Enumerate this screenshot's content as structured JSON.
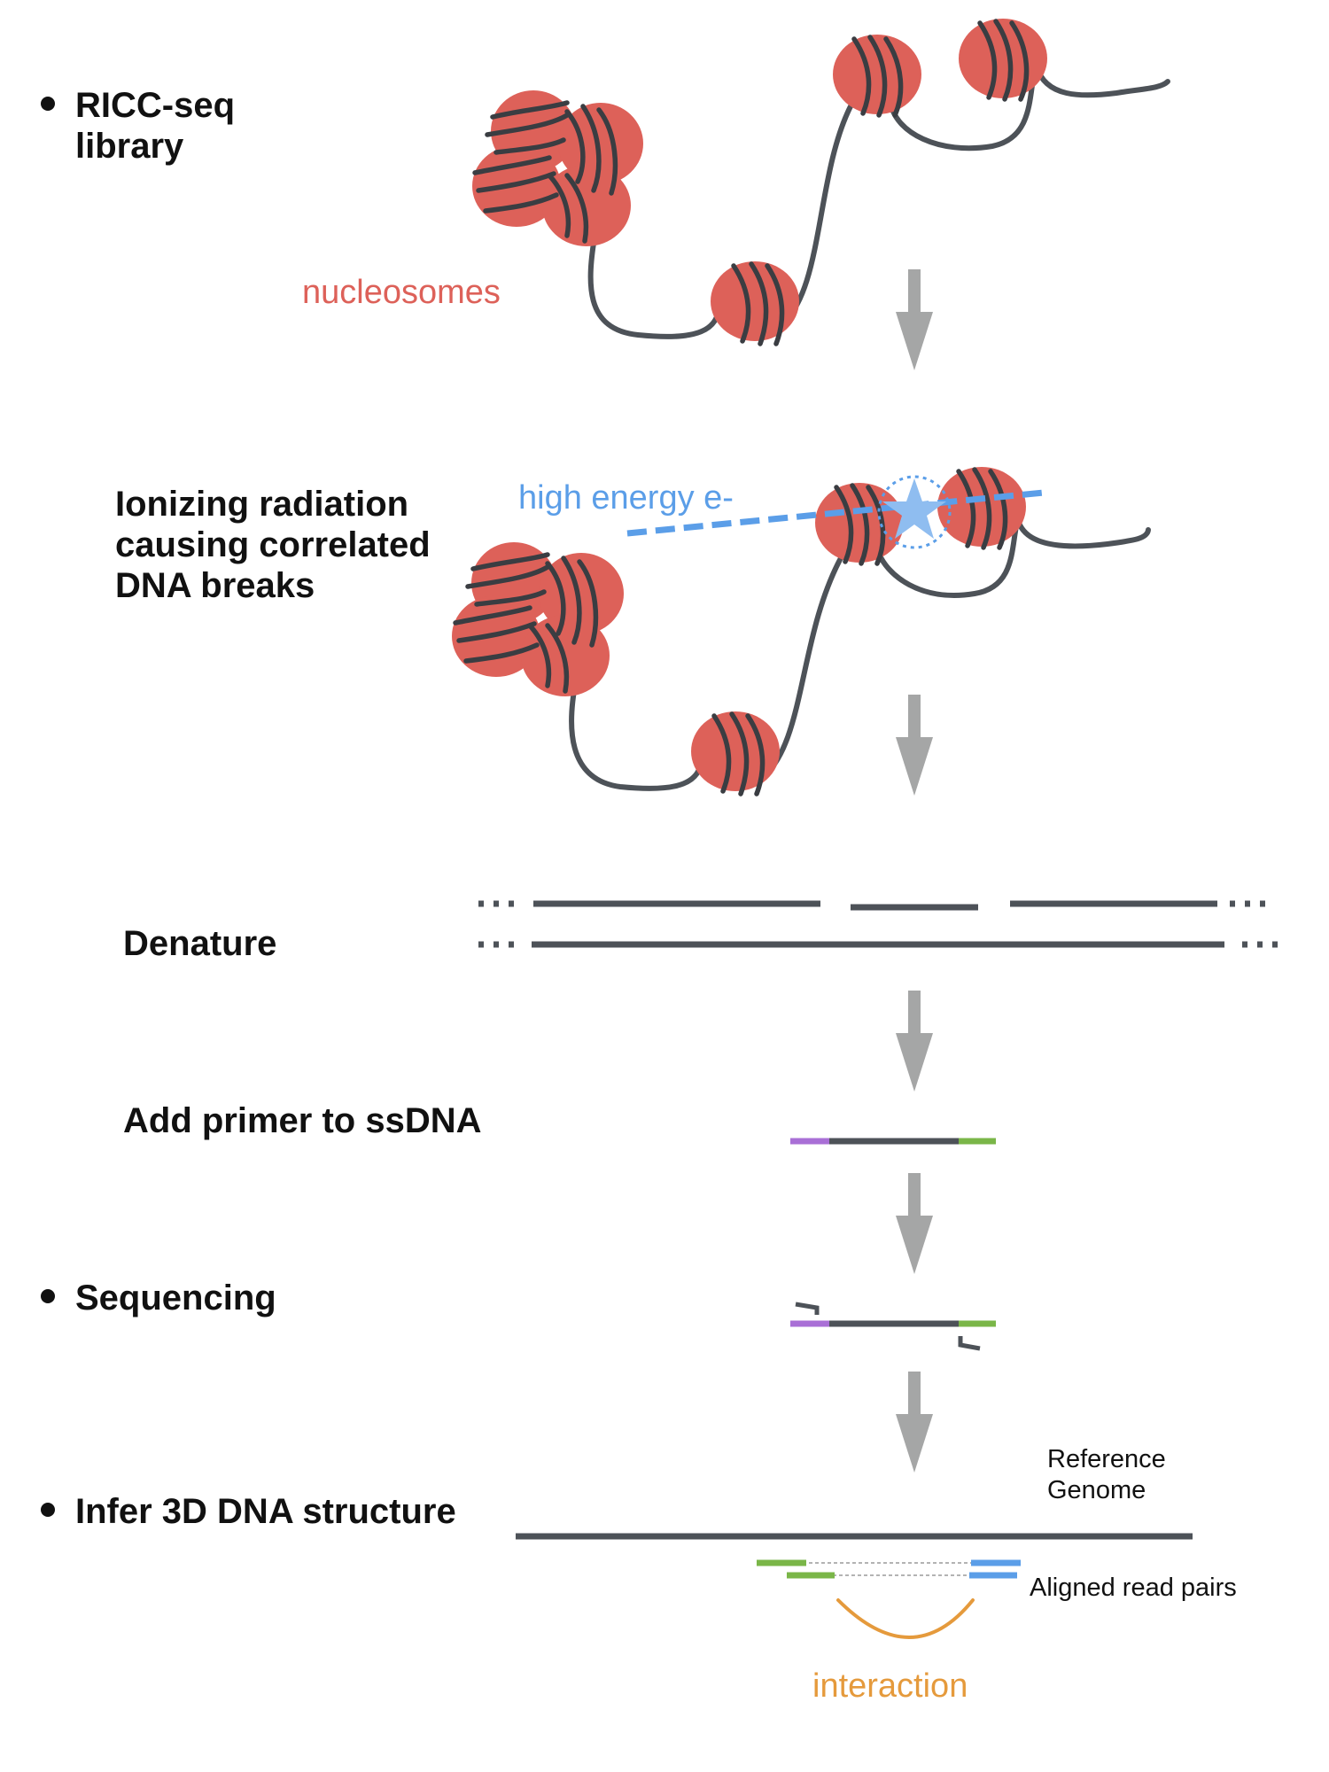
{
  "steps": {
    "library": {
      "line1": "RICC-seq",
      "line2": "library"
    },
    "radiation": {
      "line1": "Ionizing radiation",
      "line2": "causing correlated",
      "line3": "DNA breaks"
    },
    "denature": "Denature",
    "primer": "Add primer to ssDNA",
    "sequencing": "Sequencing",
    "infer": "Infer 3D DNA structure"
  },
  "labels": {
    "nucleosomes": "nucleosomes",
    "high_energy": "high energy e-",
    "reference_line1": "Reference",
    "reference_line2": "Genome",
    "aligned_pairs": "Aligned read pairs",
    "interaction": "interaction"
  },
  "colors": {
    "nucleosome": "#dd6159",
    "dna": "#4d5258",
    "arrow": "#a5a6a6",
    "electron": "#5b9ee8",
    "primer_left": "#a96fd6",
    "primer_right": "#7ab648",
    "read_right": "#5b9ee8",
    "interaction": "#e59a3c",
    "nucleosome_label": "#dd6159"
  }
}
